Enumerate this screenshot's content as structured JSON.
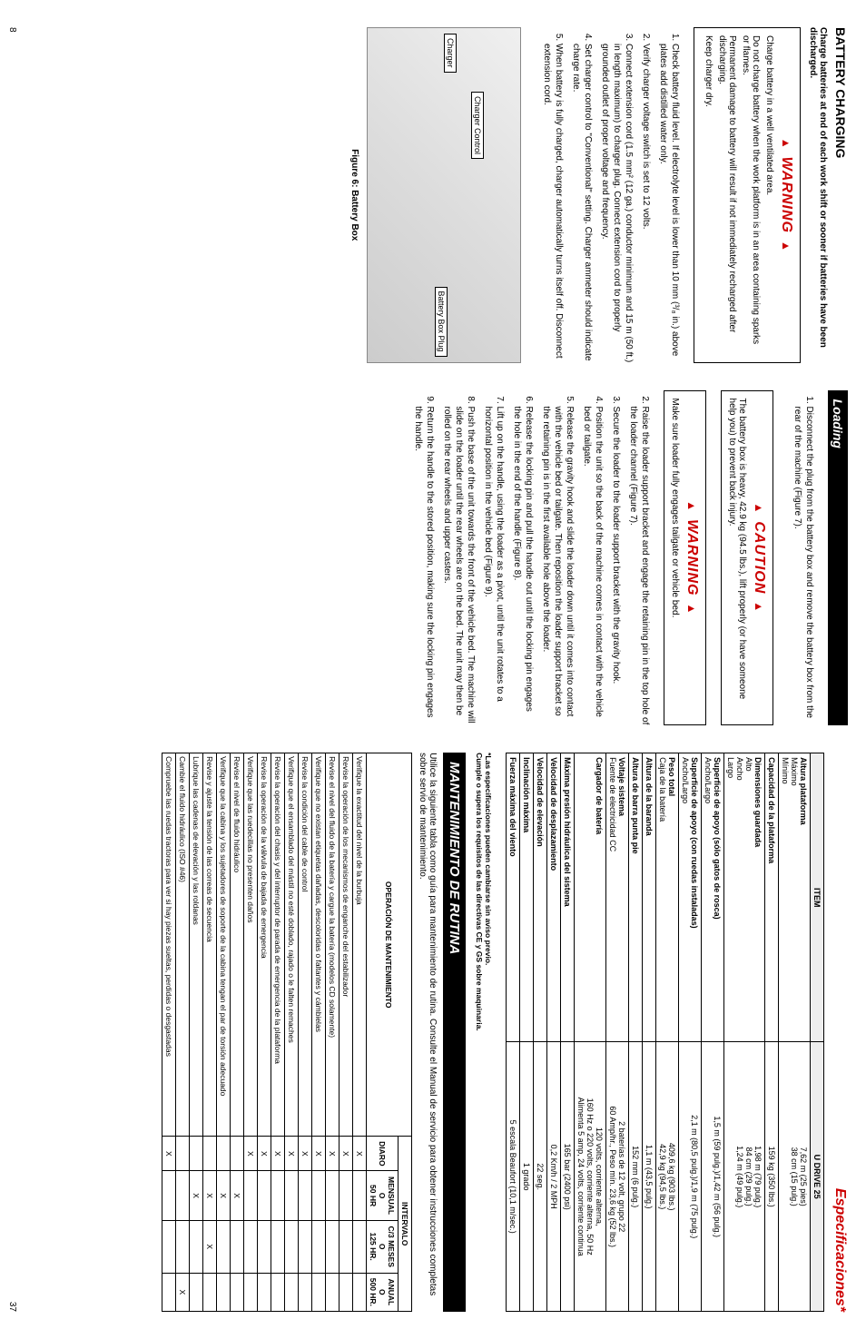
{
  "left": {
    "heading": "BATTERY CHARGING",
    "sub": "Charge batteries at end of each work shift or sooner if batteries have been discharged.",
    "warn1_title": "WARNING",
    "warn1_items": [
      "Charge battery in a well ventilated area.",
      "Do not charge battery when the work platform is in an area containing sparks or flames.",
      "Permanent damage to battery will result if not immediately recharged after discharging.",
      "Keep charger dry."
    ],
    "steps": [
      "Check battery fluid level. If electrolyte level is lower than 10 mm (³/₈ in.) above plates add distilled water only.",
      "Verify charger voltage switch is set to 12 volts.",
      "Connect extension cord (1.5 mm² (12 ga.) conductor minimum and 15 m (50 ft.) in length maximum) to charger plug. Connect extension cord to properly grounded outlet of proper voltage and frequency.",
      "Set charger control to \"Conventional\" setting. Charger ammeter should indicate charge rate.",
      "When battery is fully charged, charger automatically turns itself off. Disconnect extension cord."
    ],
    "fig_labels": {
      "charger": "Charger",
      "control": "Charger Control",
      "plug": "Battery Box Plug"
    },
    "fig_caption": "Figure 6: Battery Box"
  },
  "middle": {
    "heading": "Loading",
    "step1": "Disconnect the plug from the battery box and remove the battery box from the rear of the machine (Figure 7).",
    "caution_title": "CAUTION",
    "caution_text": "The battery box is heavy, 42.9 kg (94.5 lbs.), lift properly (or have someone help you) to prevent back injury.",
    "warn_title": "WARNING",
    "warn_text": "Make sure loader fully engages tailgate or vehicle bed.",
    "steps_rest": [
      "Raise the loader support bracket and engage the retaining pin in the top hole of the loader channel (Figure 7).",
      "Secure the loader to the loader support bracket with the gravity hook.",
      "Position the unit so the back of the machine comes in contact with the vehicle bed or tailgate.",
      "Release the gravity hook and slide the loader down until it comes into contact with the vehicle bed or tailgate. Then reposition the loader support bracket so the retaining pin is in the first available hole above the loader.",
      "Release the locking pin and pull the handle out until the locking pin engages the hole in the end of the handle (Figure 8).",
      "Lift up on the handle, using the loader as a pivot, until the unit rotates to a horizontal position in the vehicle bed (Figure 9).",
      "Push the base of the unit towards the front of the vehicle bed. The machine will slide on the loader until the rear wheels are on the bed. The unit may then be rolled on the rear wheels and upper casters.",
      "Return the handle to the stored position, making sure the locking pin engages the handle."
    ]
  },
  "right": {
    "espec_title": "Especificaciones*",
    "spec_header": {
      "item": "ITEM",
      "model": "U DRIVE 25"
    },
    "spec_rows": [
      {
        "label": "Altura plataforma",
        "sub": "Máximo\nMínimo",
        "val": "7,62 m (25 pies)\n38 cm (15 pulg.)"
      },
      {
        "label": "Capacidad de la plataforma",
        "val": "159 kg (350 lbs.)"
      },
      {
        "label": "Dimensiones guardada",
        "sub": "Alto\nAncho\nLargo",
        "val": "1,98 m (79 pulg.)\n84 cm (29 pulg.)\n1,24 m (49 pulg.)"
      },
      {
        "label": "Superficie de apoyo (sólo gatos de rosca)",
        "sub": "Ancho/Largo",
        "val": "1,5 m (59 pulg.)/1,42 m (56 pulg.)"
      },
      {
        "label": "Superficie de apoyo (con ruedas instaladas)",
        "sub": "Ancho/Largo",
        "val": "2,1 m (80,5 pulg.)/1,9 m (75 pulg.)"
      },
      {
        "label": "Peso total",
        "sub": "Caja de la batería",
        "val": "409,6 kg (903 lbs.)\n42,9 kg (94,5 lbs.)"
      },
      {
        "label": "Altura de la baranda",
        "val": "1,1 m (43,5 pulg.)"
      },
      {
        "label": "Altura de barra punta pie",
        "val": "152 mm (6 pulg.)"
      },
      {
        "label": "Voltaje sistema",
        "sub": "Fuente de electricidad CC",
        "val": "2 baterías de 12 volt, grupo 22\n60 Amp/hr., Peso mín. 23,6 kg (52 lbs.)"
      },
      {
        "label": "Cargador de batería",
        "val": "120 volts, corriente alterna,\n160 Hz o 220 volts, corriente alterna, 50 Hz\nAlimenta 5 amp, 24 volts, corriente continua"
      },
      {
        "label": "Máxima presión hidráulica del sistema",
        "val": "165 bar (2400 psi)"
      },
      {
        "label": "Velocidad de desplazamiento",
        "val": "0,2 Km/h / 2 MPH"
      },
      {
        "label": "Velocidad de elevación",
        "val": "22 seg."
      },
      {
        "label": "Inclinación máxima",
        "val": "1 grado"
      },
      {
        "label": "Fuerza máxima del viento",
        "val": "5 escala Beaufort (10,1 m/sec.)"
      }
    ],
    "spec_footnote": "*Las especificaciones pueden cambiarse sin aviso previo.\nCumple o supera los requisitos de las directivas CE y GS sobre maquinaria.",
    "mant_title": "MANTENIMIENTO DE RUTINA",
    "mant_intro": "Utilice la siguiente tabla como guía para mantenimiento de rutina. Consulte el Manual de servicio para obtener instrucciones completas sobre servio de mantenimiento.",
    "mant_headers": {
      "op": "OPERACIÓN DE MANTENIMIENTO",
      "interval": "INTERVALO",
      "diaro": "DIARO",
      "mensual": "MENSUAL\nO\n50 HR",
      "c3": "C/3 MESES\nO\n125 HR.",
      "anual": "ANUAL\nO\n500 HR."
    },
    "mant_rows": [
      {
        "op": "Verifique la exactitud del nivel de la burbuja",
        "d": "X"
      },
      {
        "op": "Revise la operación de los mecanismos de enganche del estabilizador",
        "d": "X"
      },
      {
        "op": "Revise el nivel del fluido de la batería y cargue la batería (modelos CD solamente)",
        "d": "X"
      },
      {
        "op": "Verifique que no existan etiquetas dañadas, descoloridas o faltantes y cámbielas",
        "d": "X"
      },
      {
        "op": "Revise la condición del cable de control",
        "d": "X"
      },
      {
        "op": "Verifique que el ensamblado del mástil no esté doblado, rajado o le falten remaches",
        "d": "X"
      },
      {
        "op": "Revise la operación del chasis y del interruptor de parada de emergencia de la plataforma",
        "d": "X"
      },
      {
        "op": "Revise la operación de la válvula de bajada de emergencia",
        "d": "X"
      },
      {
        "op": "Verifique que las ruedecillas no presenten daños",
        "d": "X"
      },
      {
        "op": "Revise el nivel de fluido hidráulico",
        "m": "X"
      },
      {
        "op": "Verifique que la cabina y los sujetadores de soporte de la cabina tengan el par de torsión adecuado",
        "m": "X"
      },
      {
        "op": "Revise y ajuste la tensión de las correas de secuencia",
        "m": "X",
        "c": "X"
      },
      {
        "op": "Lubrique las cadenas de elevación y las roldanas",
        "m": "X"
      },
      {
        "op": "Cambie el fluido hidráulico (ISO #46)",
        "a": "X"
      },
      {
        "op": "Compruebe las ruedas tractoras para ver si hay piezas sueltas, perdidas o desgastadas",
        "d": "X"
      }
    ]
  },
  "pagenum_left": "8",
  "pagenum_right": "37"
}
